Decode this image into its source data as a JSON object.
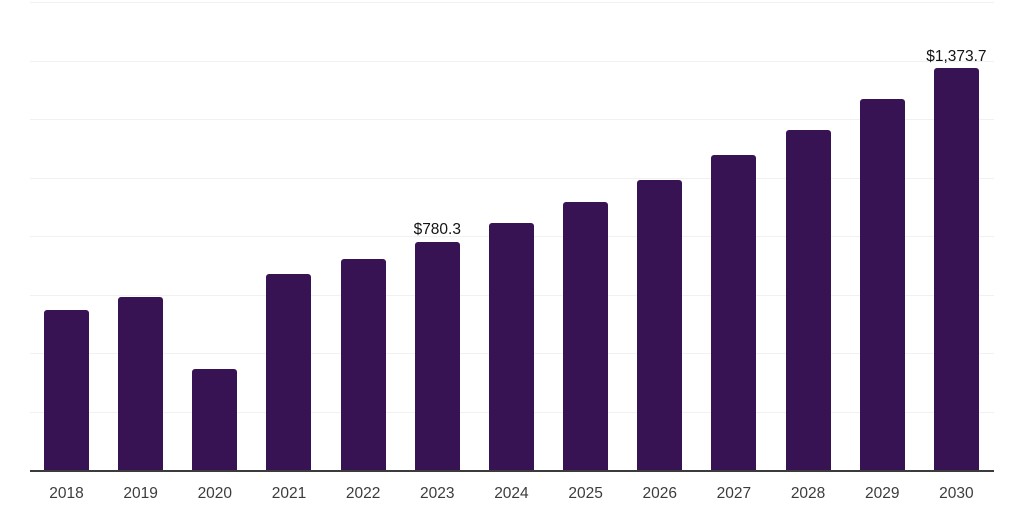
{
  "chart_data": {
    "type": "bar",
    "title": "",
    "xlabel": "",
    "ylabel": "",
    "categories": [
      "2018",
      "2019",
      "2020",
      "2021",
      "2022",
      "2023",
      "2024",
      "2025",
      "2026",
      "2027",
      "2028",
      "2029",
      "2030"
    ],
    "values": [
      546,
      593,
      346,
      671,
      723,
      780.3,
      846,
      916,
      990,
      1076,
      1164,
      1268,
      1373.7
    ],
    "bar_labels": [
      "",
      "",
      "",
      "",
      "",
      "$780.3",
      "",
      "",
      "",
      "",
      "",
      "",
      "$1,373.7"
    ],
    "ylim": [
      0,
      1600
    ],
    "gridline_interval": 200,
    "grid": true,
    "legend_position": "none",
    "colors": {
      "bar": "#371353",
      "gridline": "#f1f1f1",
      "axis_line": "#3b3b3b",
      "tick_label": "#3c3c3c",
      "value_label": "#131313",
      "background": "#ffffff"
    }
  }
}
